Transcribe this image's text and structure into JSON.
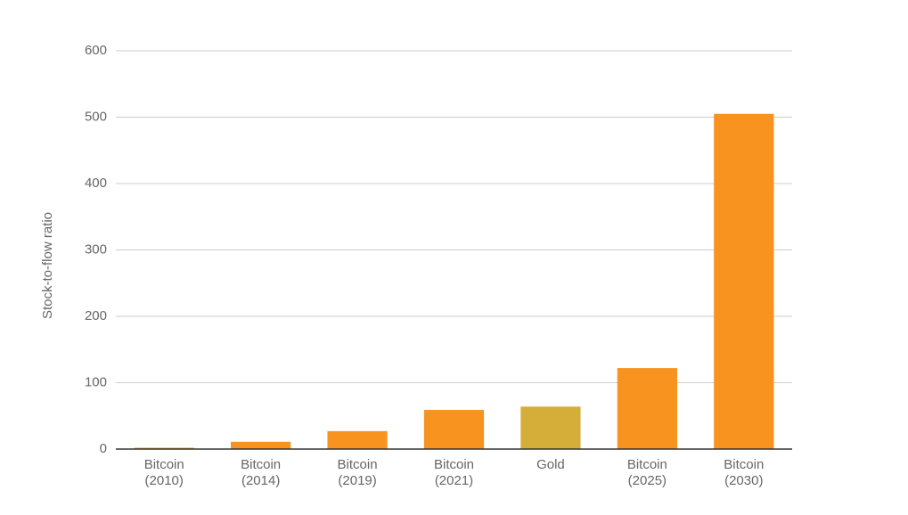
{
  "chart_data": {
    "type": "bar",
    "y_label": "Stock-to-flow ratio",
    "categories": [
      [
        "Bitcoin",
        "(2010)"
      ],
      [
        "Bitcoin",
        "(2014)"
      ],
      [
        "Bitcoin",
        "(2019)"
      ],
      [
        "Bitcoin",
        "(2021)"
      ],
      [
        "Gold"
      ],
      [
        "Bitcoin",
        "(2025)"
      ],
      [
        "Bitcoin",
        "(2030)"
      ]
    ],
    "values": [
      2,
      11,
      27,
      59,
      64,
      122,
      505
    ],
    "colors": [
      "#f7931e",
      "#f7931e",
      "#f7931e",
      "#f7931e",
      "#d4ae39",
      "#f7931e",
      "#f7931e"
    ],
    "ylim": [
      0,
      600
    ],
    "yticks": [
      0,
      100,
      200,
      300,
      400,
      500,
      600
    ],
    "grid": true
  }
}
